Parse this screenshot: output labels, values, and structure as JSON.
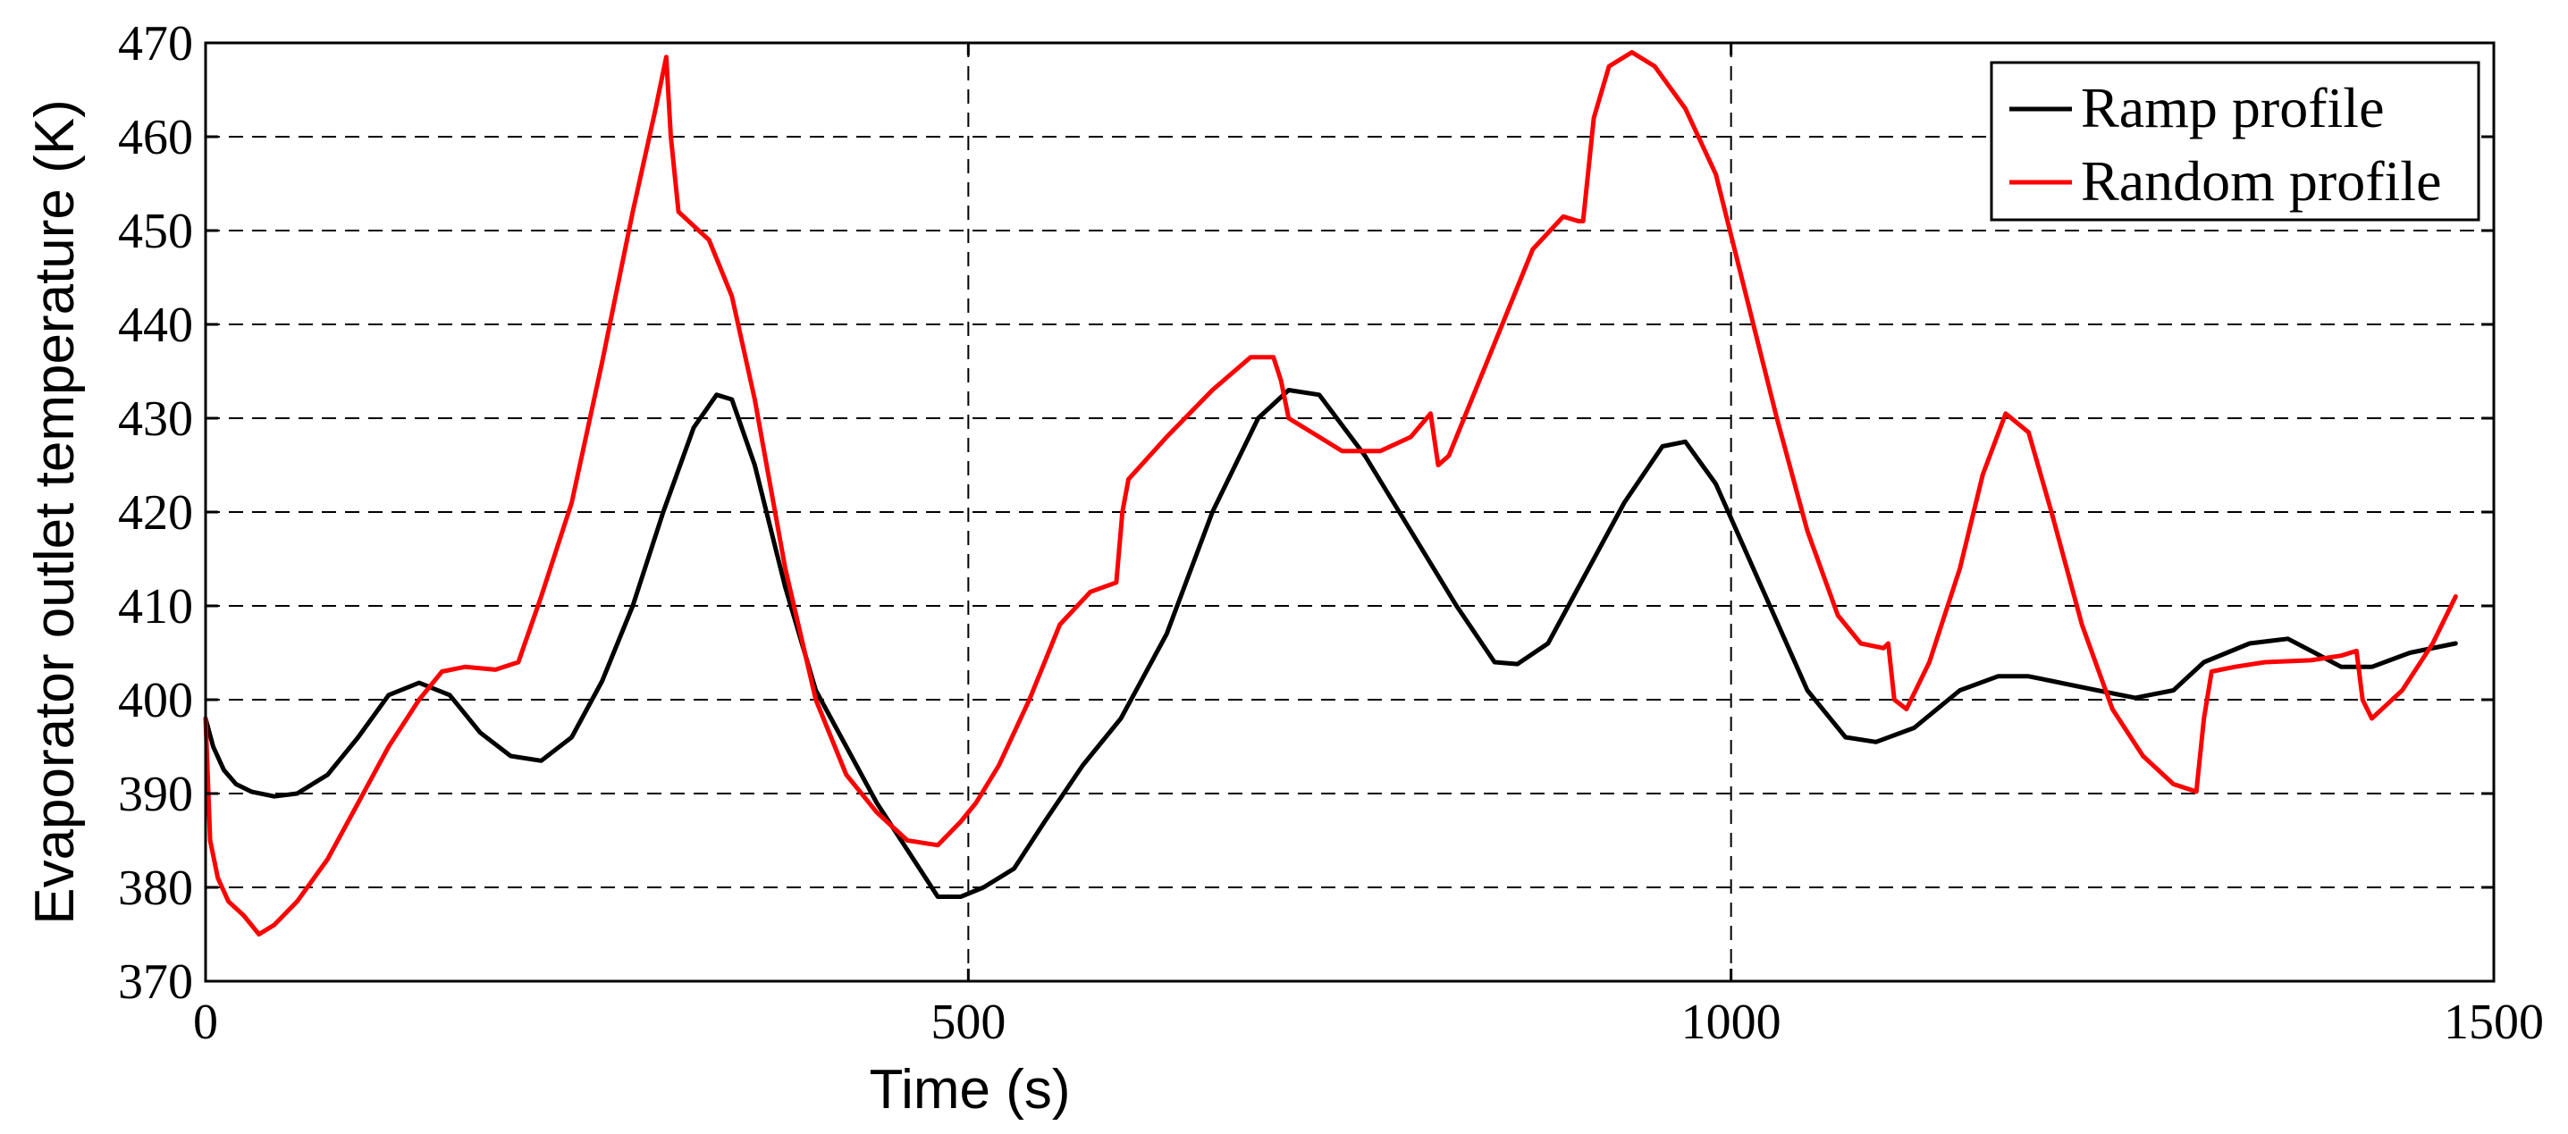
{
  "chart_data": {
    "type": "line",
    "xlabel": "Time (s)",
    "ylabel": "Evaporator outlet temperature (K)",
    "xlim": [
      0,
      1500
    ],
    "ylim": [
      370,
      470
    ],
    "xticks": [
      0,
      500,
      1000,
      1500
    ],
    "yticks": [
      370,
      380,
      390,
      400,
      410,
      420,
      430,
      440,
      450,
      460,
      470
    ],
    "grid": true,
    "legend_position": "top-right",
    "series": [
      {
        "name": "Ramp profile",
        "color": "#000000",
        "points": [
          [
            0,
            398
          ],
          [
            5,
            395
          ],
          [
            12,
            392.5
          ],
          [
            20,
            391
          ],
          [
            30,
            390.2
          ],
          [
            45,
            389.7
          ],
          [
            60,
            390
          ],
          [
            80,
            392
          ],
          [
            100,
            396
          ],
          [
            120,
            400.5
          ],
          [
            140,
            401.8
          ],
          [
            160,
            400.5
          ],
          [
            180,
            396.5
          ],
          [
            200,
            394
          ],
          [
            220,
            393.5
          ],
          [
            240,
            396
          ],
          [
            260,
            402
          ],
          [
            280,
            410
          ],
          [
            300,
            420
          ],
          [
            320,
            429
          ],
          [
            335,
            432.5
          ],
          [
            345,
            432
          ],
          [
            360,
            425
          ],
          [
            380,
            412
          ],
          [
            400,
            401
          ],
          [
            420,
            395
          ],
          [
            440,
            389
          ],
          [
            460,
            384
          ],
          [
            480,
            379
          ],
          [
            495,
            379
          ],
          [
            510,
            380
          ],
          [
            530,
            382
          ],
          [
            550,
            387
          ],
          [
            575,
            393
          ],
          [
            600,
            398
          ],
          [
            630,
            407
          ],
          [
            660,
            420
          ],
          [
            690,
            430
          ],
          [
            710,
            433
          ],
          [
            730,
            432.5
          ],
          [
            760,
            426
          ],
          [
            790,
            418
          ],
          [
            820,
            410
          ],
          [
            845,
            404
          ],
          [
            860,
            403.8
          ],
          [
            880,
            406
          ],
          [
            900,
            412
          ],
          [
            930,
            421
          ],
          [
            955,
            427
          ],
          [
            970,
            427.5
          ],
          [
            990,
            423
          ],
          [
            1020,
            412
          ],
          [
            1050,
            401
          ],
          [
            1075,
            396
          ],
          [
            1095,
            395.5
          ],
          [
            1120,
            397
          ],
          [
            1150,
            401
          ],
          [
            1175,
            402.5
          ],
          [
            1195,
            402.5
          ],
          [
            1210,
            402
          ],
          [
            1240,
            401
          ],
          [
            1265,
            400.2
          ],
          [
            1290,
            401
          ],
          [
            1310,
            404
          ],
          [
            1340,
            406
          ],
          [
            1365,
            406.5
          ],
          [
            1385,
            404.8
          ],
          [
            1400,
            403.5
          ],
          [
            1420,
            403.5
          ],
          [
            1445,
            405
          ],
          [
            1475,
            406
          ]
        ]
      },
      {
        "name": "Random profile",
        "color": "#ff0000",
        "points": [
          [
            0,
            398
          ],
          [
            3,
            385
          ],
          [
            8,
            381
          ],
          [
            15,
            378.5
          ],
          [
            25,
            377
          ],
          [
            35,
            375
          ],
          [
            45,
            376
          ],
          [
            60,
            378.5
          ],
          [
            80,
            383
          ],
          [
            100,
            389
          ],
          [
            120,
            395
          ],
          [
            140,
            400
          ],
          [
            155,
            403
          ],
          [
            170,
            403.5
          ],
          [
            190,
            403.2
          ],
          [
            205,
            404
          ],
          [
            220,
            411
          ],
          [
            240,
            421
          ],
          [
            260,
            436
          ],
          [
            280,
            452
          ],
          [
            295,
            463
          ],
          [
            302,
            468.5
          ],
          [
            305,
            460
          ],
          [
            310,
            452
          ],
          [
            320,
            450.5
          ],
          [
            330,
            449
          ],
          [
            345,
            443
          ],
          [
            360,
            432
          ],
          [
            380,
            414
          ],
          [
            400,
            400
          ],
          [
            420,
            392
          ],
          [
            440,
            388
          ],
          [
            460,
            385
          ],
          [
            480,
            384.5
          ],
          [
            495,
            387
          ],
          [
            505,
            389
          ],
          [
            520,
            393
          ],
          [
            540,
            400
          ],
          [
            560,
            408
          ],
          [
            580,
            411.5
          ],
          [
            597,
            412.5
          ],
          [
            601,
            420
          ],
          [
            605,
            423.5
          ],
          [
            630,
            428
          ],
          [
            660,
            433
          ],
          [
            685,
            436.5
          ],
          [
            700,
            436.5
          ],
          [
            705,
            434
          ],
          [
            710,
            430
          ],
          [
            730,
            428
          ],
          [
            745,
            426.5
          ],
          [
            770,
            426.5
          ],
          [
            790,
            428
          ],
          [
            803,
            430.5
          ],
          [
            808,
            425
          ],
          [
            815,
            426
          ],
          [
            830,
            432
          ],
          [
            850,
            440
          ],
          [
            870,
            448
          ],
          [
            890,
            451.5
          ],
          [
            900,
            451
          ],
          [
            903,
            451
          ],
          [
            910,
            462
          ],
          [
            920,
            467.5
          ],
          [
            935,
            469
          ],
          [
            950,
            467.5
          ],
          [
            970,
            463
          ],
          [
            990,
            456
          ],
          [
            1010,
            443
          ],
          [
            1030,
            430
          ],
          [
            1050,
            418
          ],
          [
            1070,
            409
          ],
          [
            1085,
            406
          ],
          [
            1100,
            405.5
          ],
          [
            1103,
            406
          ],
          [
            1107,
            400
          ],
          [
            1115,
            399
          ],
          [
            1130,
            404
          ],
          [
            1150,
            414
          ],
          [
            1165,
            424
          ],
          [
            1180,
            430.5
          ],
          [
            1195,
            428.5
          ],
          [
            1210,
            420
          ],
          [
            1230,
            408
          ],
          [
            1250,
            399
          ],
          [
            1270,
            394
          ],
          [
            1290,
            391
          ],
          [
            1305,
            390.2
          ],
          [
            1310,
            398
          ],
          [
            1315,
            403
          ],
          [
            1330,
            403.5
          ],
          [
            1350,
            404
          ],
          [
            1380,
            404.2
          ],
          [
            1400,
            404.7
          ],
          [
            1410,
            405.2
          ],
          [
            1414,
            400
          ],
          [
            1420,
            398
          ],
          [
            1440,
            401
          ],
          [
            1460,
            406
          ],
          [
            1475,
            411
          ]
        ]
      }
    ]
  }
}
